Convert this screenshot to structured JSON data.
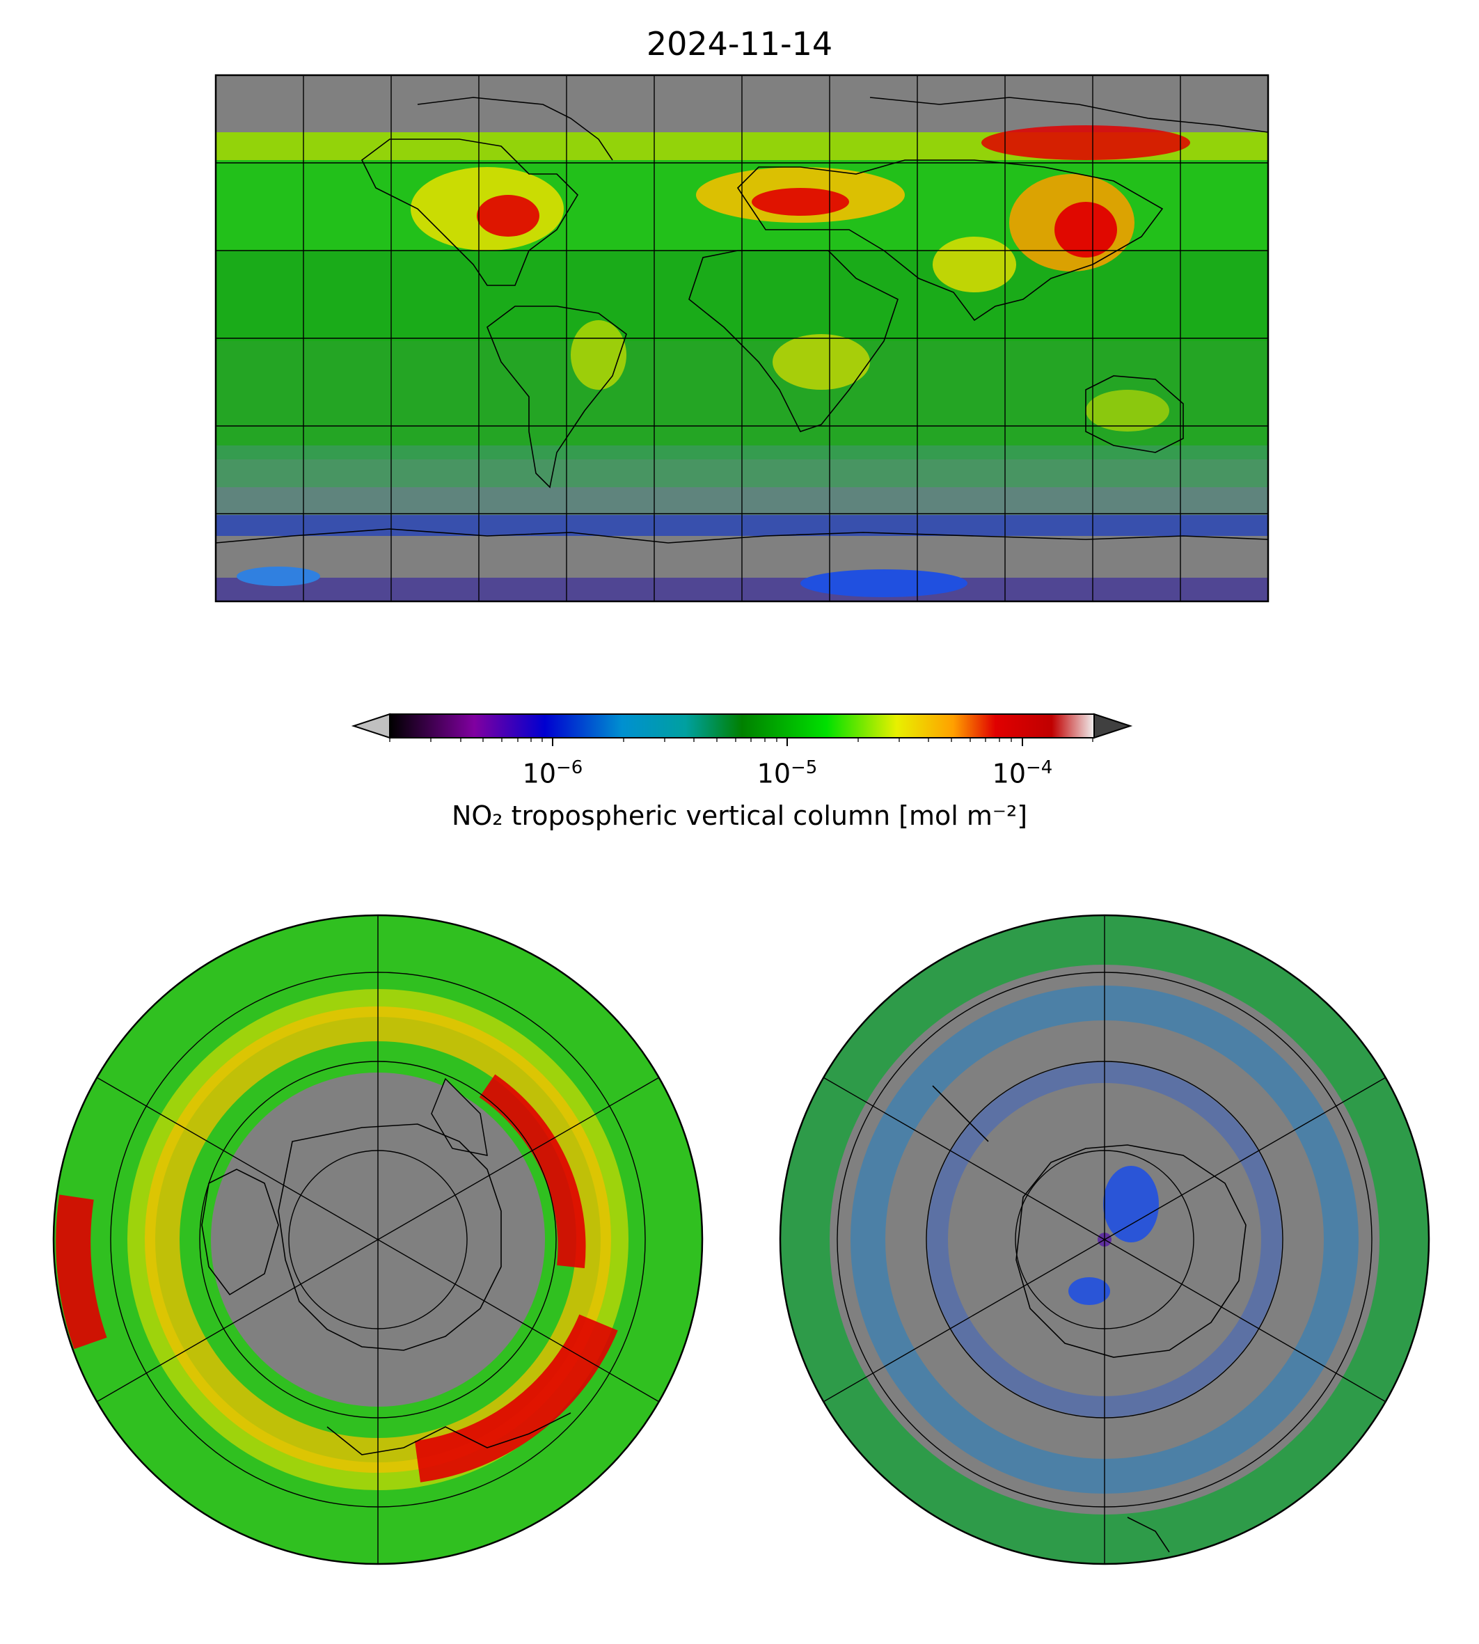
{
  "title": "2024-11-14",
  "colorbar": {
    "label": "NO₂ tropospheric vertical column [mol m⁻²]",
    "scale": "log",
    "range": [
      2e-07,
      0.0002
    ],
    "extend": "both",
    "ticks": [
      {
        "base": "10",
        "exp": "−6",
        "value": 1e-06
      },
      {
        "base": "10",
        "exp": "−5",
        "value": 1e-05
      },
      {
        "base": "10",
        "exp": "−4",
        "value": 0.0001
      }
    ],
    "colors": [
      "#000000",
      "#8000a0",
      "#0000d0",
      "#0090d0",
      "#00a0a0",
      "#008000",
      "#00e000",
      "#e8f000",
      "#ffa000",
      "#e00000",
      "#c00000",
      "#f0f0f0"
    ],
    "under_color": "#c0c0c0",
    "over_color": "#404040"
  },
  "maps": [
    {
      "name": "global",
      "projection": "plate-carree",
      "missing_color": "#808080"
    },
    {
      "name": "north-polar",
      "projection": "north-polar-stereographic",
      "missing_color": "#808080"
    },
    {
      "name": "south-polar",
      "projection": "south-polar-stereographic",
      "missing_color": "#808080"
    }
  ]
}
